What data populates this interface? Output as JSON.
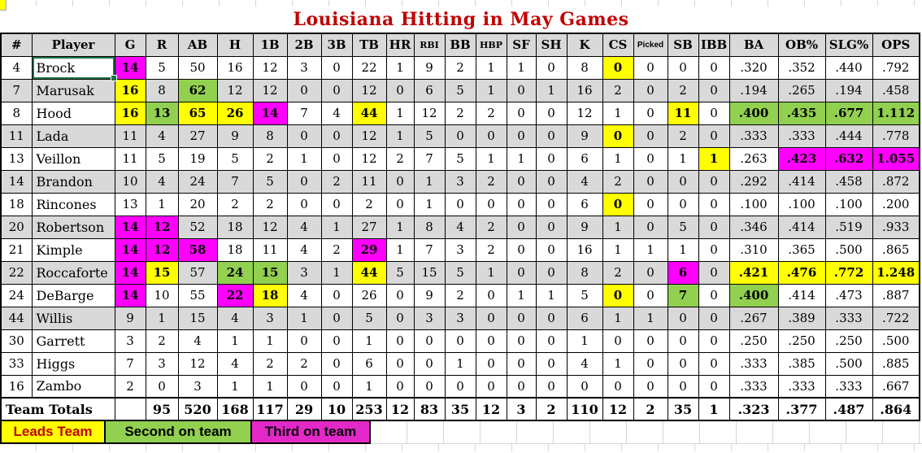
{
  "title": "Louisiana Hitting in May Games",
  "columns": [
    "#",
    "Player",
    "G",
    "R",
    "AB",
    "H",
    "1B",
    "2B",
    "3B",
    "TB",
    "HR",
    "RBI",
    "BB",
    "HBP",
    "SF",
    "SH",
    "K",
    "CS",
    "Picked",
    "SB",
    "IBB",
    "BA",
    "OB%",
    "SLG%",
    "OPS"
  ],
  "rows": [
    {
      "num": "4",
      "player": "Brock",
      "shade": false,
      "selected": true,
      "values": {
        "G": "14",
        "R": "5",
        "AB": "50",
        "H": "16",
        "1B": "12",
        "2B": "3",
        "3B": "0",
        "TB": "22",
        "HR": "1",
        "RBI": "9",
        "BB": "2",
        "HBP": "1",
        "SF": "1",
        "SH": "0",
        "K": "8",
        "CS": "0",
        "Picked": "0",
        "SB": "0",
        "IBB": "0",
        "BA": ".320",
        "OB%": ".352",
        "SLG%": ".440",
        "OPS": ".792"
      },
      "highlights": {
        "G": "magenta",
        "CS": "yellow"
      }
    },
    {
      "num": "7",
      "player": "Marusak",
      "shade": true,
      "values": {
        "G": "16",
        "R": "8",
        "AB": "62",
        "H": "12",
        "1B": "12",
        "2B": "0",
        "3B": "0",
        "TB": "12",
        "HR": "0",
        "RBI": "6",
        "BB": "5",
        "HBP": "1",
        "SF": "0",
        "SH": "1",
        "K": "16",
        "CS": "2",
        "Picked": "0",
        "SB": "2",
        "IBB": "0",
        "BA": ".194",
        "OB%": ".265",
        "SLG%": ".194",
        "OPS": ".458"
      },
      "highlights": {
        "G": "yellow",
        "AB": "green"
      }
    },
    {
      "num": "8",
      "player": "Hood",
      "shade": false,
      "values": {
        "G": "16",
        "R": "13",
        "AB": "65",
        "H": "26",
        "1B": "14",
        "2B": "7",
        "3B": "4",
        "TB": "44",
        "HR": "1",
        "RBI": "12",
        "BB": "2",
        "HBP": "2",
        "SF": "0",
        "SH": "0",
        "K": "12",
        "CS": "1",
        "Picked": "0",
        "SB": "11",
        "IBB": "0",
        "BA": ".400",
        "OB%": ".435",
        "SLG%": ".677",
        "OPS": "1.112"
      },
      "highlights": {
        "G": "yellow",
        "R": "green",
        "AB": "yellow",
        "H": "yellow",
        "1B": "magenta",
        "TB": "yellow",
        "SB": "yellow",
        "BA": "green",
        "OB%": "green",
        "SLG%": "green",
        "OPS": "green"
      }
    },
    {
      "num": "11",
      "player": "Lada",
      "shade": true,
      "values": {
        "G": "11",
        "R": "4",
        "AB": "27",
        "H": "9",
        "1B": "8",
        "2B": "0",
        "3B": "0",
        "TB": "12",
        "HR": "1",
        "RBI": "5",
        "BB": "0",
        "HBP": "0",
        "SF": "0",
        "SH": "0",
        "K": "9",
        "CS": "0",
        "Picked": "0",
        "SB": "2",
        "IBB": "0",
        "BA": ".333",
        "OB%": ".333",
        "SLG%": ".444",
        "OPS": ".778"
      },
      "highlights": {
        "CS": "yellow"
      }
    },
    {
      "num": "13",
      "player": "Veillon",
      "shade": false,
      "values": {
        "G": "11",
        "R": "5",
        "AB": "19",
        "H": "5",
        "1B": "2",
        "2B": "1",
        "3B": "0",
        "TB": "12",
        "HR": "2",
        "RBI": "7",
        "BB": "5",
        "HBP": "1",
        "SF": "1",
        "SH": "0",
        "K": "6",
        "CS": "1",
        "Picked": "0",
        "SB": "1",
        "IBB": "1",
        "BA": ".263",
        "OB%": ".423",
        "SLG%": ".632",
        "OPS": "1.055"
      },
      "highlights": {
        "IBB": "yellow",
        "OB%": "magenta",
        "SLG%": "magenta",
        "OPS": "magenta"
      }
    },
    {
      "num": "14",
      "player": "Brandon",
      "shade": true,
      "values": {
        "G": "10",
        "R": "4",
        "AB": "24",
        "H": "7",
        "1B": "5",
        "2B": "0",
        "3B": "2",
        "TB": "11",
        "HR": "0",
        "RBI": "1",
        "BB": "3",
        "HBP": "2",
        "SF": "0",
        "SH": "0",
        "K": "4",
        "CS": "2",
        "Picked": "0",
        "SB": "0",
        "IBB": "0",
        "BA": ".292",
        "OB%": ".414",
        "SLG%": ".458",
        "OPS": ".872"
      },
      "highlights": {}
    },
    {
      "num": "18",
      "player": "Rincones",
      "shade": false,
      "values": {
        "G": "13",
        "R": "1",
        "AB": "20",
        "H": "2",
        "1B": "2",
        "2B": "0",
        "3B": "0",
        "TB": "2",
        "HR": "0",
        "RBI": "1",
        "BB": "0",
        "HBP": "0",
        "SF": "0",
        "SH": "0",
        "K": "6",
        "CS": "0",
        "Picked": "0",
        "SB": "0",
        "IBB": "0",
        "BA": ".100",
        "OB%": ".100",
        "SLG%": ".100",
        "OPS": ".200"
      },
      "highlights": {
        "CS": "yellow"
      }
    },
    {
      "num": "20",
      "player": "Robertson",
      "shade": true,
      "values": {
        "G": "14",
        "R": "12",
        "AB": "52",
        "H": "18",
        "1B": "12",
        "2B": "4",
        "3B": "1",
        "TB": "27",
        "HR": "1",
        "RBI": "8",
        "BB": "4",
        "HBP": "2",
        "SF": "0",
        "SH": "0",
        "K": "9",
        "CS": "1",
        "Picked": "0",
        "SB": "5",
        "IBB": "0",
        "BA": ".346",
        "OB%": ".414",
        "SLG%": ".519",
        "OPS": ".933"
      },
      "highlights": {
        "G": "magenta",
        "R": "magenta"
      }
    },
    {
      "num": "21",
      "player": "Kimple",
      "shade": false,
      "values": {
        "G": "14",
        "R": "12",
        "AB": "58",
        "H": "18",
        "1B": "11",
        "2B": "4",
        "3B": "2",
        "TB": "29",
        "HR": "1",
        "RBI": "7",
        "BB": "3",
        "HBP": "2",
        "SF": "0",
        "SH": "0",
        "K": "16",
        "CS": "1",
        "Picked": "1",
        "SB": "1",
        "IBB": "0",
        "BA": ".310",
        "OB%": ".365",
        "SLG%": ".500",
        "OPS": ".865"
      },
      "highlights": {
        "G": "magenta",
        "R": "magenta",
        "AB": "magenta",
        "TB": "magenta"
      }
    },
    {
      "num": "22",
      "player": "Roccaforte",
      "shade": true,
      "values": {
        "G": "14",
        "R": "15",
        "AB": "57",
        "H": "24",
        "1B": "15",
        "2B": "3",
        "3B": "1",
        "TB": "44",
        "HR": "5",
        "RBI": "15",
        "BB": "5",
        "HBP": "1",
        "SF": "0",
        "SH": "0",
        "K": "8",
        "CS": "2",
        "Picked": "0",
        "SB": "6",
        "IBB": "0",
        "BA": ".421",
        "OB%": ".476",
        "SLG%": ".772",
        "OPS": "1.248"
      },
      "highlights": {
        "G": "magenta",
        "R": "yellow",
        "H": "green",
        "1B": "green",
        "TB": "yellow",
        "SB": "magenta",
        "BA": "yellow",
        "OB%": "yellow",
        "SLG%": "yellow",
        "OPS": "yellow"
      }
    },
    {
      "num": "24",
      "player": "DeBarge",
      "shade": false,
      "values": {
        "G": "14",
        "R": "10",
        "AB": "55",
        "H": "22",
        "1B": "18",
        "2B": "4",
        "3B": "0",
        "TB": "26",
        "HR": "0",
        "RBI": "9",
        "BB": "2",
        "HBP": "0",
        "SF": "1",
        "SH": "1",
        "K": "5",
        "CS": "0",
        "Picked": "0",
        "SB": "7",
        "IBB": "0",
        "BA": ".400",
        "OB%": ".414",
        "SLG%": ".473",
        "OPS": ".887"
      },
      "highlights": {
        "G": "magenta",
        "H": "magenta",
        "1B": "yellow",
        "CS": "yellow",
        "SB": "green",
        "BA": "green"
      }
    },
    {
      "num": "44",
      "player": "Willis",
      "shade": true,
      "values": {
        "G": "9",
        "R": "1",
        "AB": "15",
        "H": "4",
        "1B": "3",
        "2B": "1",
        "3B": "0",
        "TB": "5",
        "HR": "0",
        "RBI": "3",
        "BB": "3",
        "HBP": "0",
        "SF": "0",
        "SH": "0",
        "K": "6",
        "CS": "1",
        "Picked": "1",
        "SB": "0",
        "IBB": "0",
        "BA": ".267",
        "OB%": ".389",
        "SLG%": ".333",
        "OPS": ".722"
      },
      "highlights": {}
    },
    {
      "num": "30",
      "player": "Garrett",
      "shade": false,
      "values": {
        "G": "3",
        "R": "2",
        "AB": "4",
        "H": "1",
        "1B": "1",
        "2B": "0",
        "3B": "0",
        "TB": "1",
        "HR": "0",
        "RBI": "0",
        "BB": "0",
        "HBP": "0",
        "SF": "0",
        "SH": "0",
        "K": "1",
        "CS": "0",
        "Picked": "0",
        "SB": "0",
        "IBB": "0",
        "BA": ".250",
        "OB%": ".250",
        "SLG%": ".250",
        "OPS": ".500"
      },
      "highlights": {}
    },
    {
      "num": "33",
      "player": "Higgs",
      "shade": false,
      "values": {
        "G": "7",
        "R": "3",
        "AB": "12",
        "H": "4",
        "1B": "2",
        "2B": "2",
        "3B": "0",
        "TB": "6",
        "HR": "0",
        "RBI": "0",
        "BB": "1",
        "HBP": "0",
        "SF": "0",
        "SH": "0",
        "K": "4",
        "CS": "1",
        "Picked": "0",
        "SB": "0",
        "IBB": "0",
        "BA": ".333",
        "OB%": ".385",
        "SLG%": ".500",
        "OPS": ".885"
      },
      "highlights": {}
    },
    {
      "num": "16",
      "player": "Zambo",
      "shade": false,
      "values": {
        "G": "2",
        "R": "0",
        "AB": "3",
        "H": "1",
        "1B": "1",
        "2B": "0",
        "3B": "0",
        "TB": "1",
        "HR": "0",
        "RBI": "0",
        "BB": "0",
        "HBP": "0",
        "SF": "0",
        "SH": "0",
        "K": "0",
        "CS": "0",
        "Picked": "0",
        "SB": "0",
        "IBB": "0",
        "BA": ".333",
        "OB%": ".333",
        "SLG%": ".333",
        "OPS": ".667"
      },
      "highlights": {}
    }
  ],
  "totals": {
    "label": "Team Totals",
    "values": {
      "G": "",
      "R": "95",
      "AB": "520",
      "H": "168",
      "1B": "117",
      "2B": "29",
      "3B": "10",
      "TB": "253",
      "HR": "12",
      "RBI": "83",
      "BB": "35",
      "HBP": "12",
      "SF": "3",
      "SH": "2",
      "K": "110",
      "CS": "12",
      "Picked": "2",
      "SB": "35",
      "IBB": "1",
      "BA": ".323",
      "OB%": ".377",
      "SLG%": ".487",
      "OPS": ".864"
    }
  },
  "legend": [
    {
      "label": "Leads Team",
      "bg": "#FFFF00",
      "text_color": "#C00000"
    },
    {
      "label": "Second on team",
      "bg": "#92D050",
      "text_color": "#000000"
    },
    {
      "label": "Third on team",
      "bg": "#E328C8",
      "text_color": "#000000"
    }
  ],
  "colors": {
    "title": "#C00000",
    "highlight_leads": "#FFFF00",
    "highlight_second": "#92D050",
    "highlight_third": "#FF00FF",
    "row_shade": "#D9D9D9",
    "header_bg": "#D9D9D9",
    "border": "#000000",
    "selection": "#217346"
  }
}
